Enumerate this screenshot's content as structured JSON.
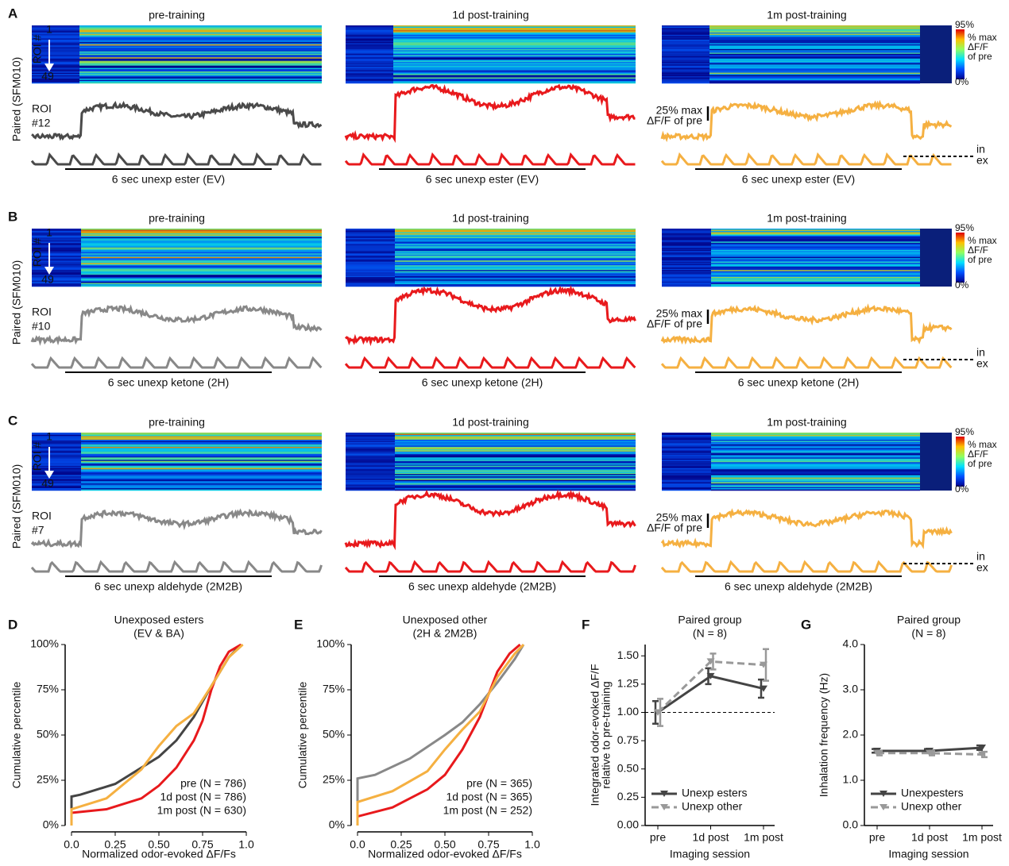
{
  "figure": {
    "panels": [
      {
        "letter": "A",
        "ylabel": "Paired (SFM010)",
        "roi_axis": "ROI #",
        "roi_first": "1",
        "roi_last": "49",
        "roi_label": [
          "ROI",
          "#12"
        ],
        "titles": [
          "pre-training",
          "1d post-training",
          "1m post-training"
        ],
        "odor": "6 sec unexp ester (EV)",
        "colorbar": [
          "95%",
          "% max",
          "ΔF/F",
          "of pre",
          "0%"
        ],
        "scale": [
          "25% max",
          "ΔF/F of pre"
        ],
        "breath": [
          "in",
          "ex"
        ]
      },
      {
        "letter": "B",
        "ylabel": "Paired (SFM010)",
        "roi_axis": "ROI #",
        "roi_first": "1",
        "roi_last": "49",
        "roi_label": [
          "ROI",
          "#10"
        ],
        "titles": [
          "pre-training",
          "1d post-training",
          "1m post-training"
        ],
        "odor": "6 sec unexp ketone (2H)",
        "colorbar": [
          "95%",
          "% max",
          "ΔF/F",
          "of pre",
          "0%"
        ],
        "scale": [
          "25% max",
          "ΔF/F of pre"
        ],
        "breath": [
          "in",
          "ex"
        ]
      },
      {
        "letter": "C",
        "ylabel": "Paired (SFM010)",
        "roi_axis": "ROI #",
        "roi_first": "1",
        "roi_last": "49",
        "roi_label": [
          "ROI",
          "#7"
        ],
        "titles": [
          "pre-training",
          "1d post-training",
          "1m post-training"
        ],
        "odor": "6 sec unexp aldehyde (2M2B)",
        "colorbar": [
          "95%",
          "% max",
          "ΔF/F",
          "of pre",
          "0%"
        ],
        "scale": [
          "25% max",
          "ΔF/F of pre"
        ],
        "breath": [
          "in",
          "ex"
        ]
      }
    ]
  },
  "chart_data": [
    {
      "type": "line",
      "letter": "D",
      "title": [
        "Unexposed esters",
        "(EV & BA)"
      ],
      "title_color": "#666666",
      "ylabel": [
        "Cumulative percentile"
      ],
      "xlabel": "Normalized odor-evoked ΔF/Fs",
      "xlim": [
        0,
        1
      ],
      "ylim": [
        0,
        100
      ],
      "xticks": [
        {
          "value": 0,
          "label": "0.0"
        },
        0.25,
        {
          "value": 0.5,
          "label": "0.50"
        },
        0.75,
        {
          "value": 1,
          "label": "1.0"
        }
      ],
      "yticks": [
        {
          "value": 0,
          "label": "0%"
        },
        {
          "value": 25,
          "label": "25%"
        },
        {
          "value": 50,
          "label": "50%"
        },
        {
          "value": 75,
          "label": "75%"
        },
        {
          "value": 100,
          "label": "100%"
        }
      ],
      "legend": "lower right",
      "series": [
        {
          "name": "pre (N = 786)",
          "color": "#444444",
          "x": [
            0,
            0,
            0.05,
            0.25,
            0.5,
            0.6,
            0.7,
            0.8,
            0.9,
            0.97
          ],
          "values": [
            0,
            16,
            17,
            23,
            38,
            47,
            60,
            77,
            93,
            100
          ]
        },
        {
          "name": "1d post (N = 786)",
          "color": "#e8191c",
          "x": [
            0,
            0,
            0.2,
            0.4,
            0.5,
            0.6,
            0.7,
            0.75,
            0.8,
            0.85,
            0.9,
            0.97
          ],
          "values": [
            0,
            7,
            9,
            15,
            22,
            32,
            47,
            58,
            75,
            88,
            96,
            100
          ]
        },
        {
          "name": "1m post (N = 630)",
          "color": "#f5b041",
          "x": [
            0,
            0,
            0.2,
            0.4,
            0.5,
            0.6,
            0.7,
            0.8,
            0.9,
            0.98
          ],
          "values": [
            0,
            9,
            15,
            31,
            44,
            55,
            62,
            77,
            93,
            100
          ]
        }
      ]
    },
    {
      "type": "line",
      "letter": "E",
      "title": [
        "Unexposed other",
        "(2H & 2M2B)"
      ],
      "title_color": "#999999",
      "ylabel": [
        "Cumulative percentile"
      ],
      "xlabel": "Normalized odor-evoked ΔF/Fs",
      "xlim": [
        0,
        1
      ],
      "ylim": [
        0,
        100
      ],
      "xticks": [
        {
          "value": 0,
          "label": "0.0"
        },
        0.25,
        {
          "value": 0.5,
          "label": "0.50"
        },
        0.75,
        {
          "value": 1,
          "label": "1.0"
        }
      ],
      "yticks": [
        {
          "value": 0,
          "label": "0%"
        },
        {
          "value": 25,
          "label": "25%"
        },
        {
          "value": 50,
          "label": "50%"
        },
        {
          "value": 75,
          "label": "75%"
        },
        {
          "value": 100,
          "label": "100%"
        }
      ],
      "legend": "lower right",
      "series": [
        {
          "name": "pre (N = 365)",
          "color": "#888888",
          "x": [
            0,
            0,
            0.1,
            0.3,
            0.5,
            0.6,
            0.7,
            0.8,
            0.9,
            0.95
          ],
          "values": [
            0,
            26,
            28,
            37,
            50,
            57,
            67,
            79,
            92,
            100
          ]
        },
        {
          "name": "1d post (N = 365)",
          "color": "#e8191c",
          "x": [
            0,
            0,
            0.2,
            0.4,
            0.5,
            0.6,
            0.7,
            0.8,
            0.87,
            0.93
          ],
          "values": [
            0,
            5,
            10,
            20,
            28,
            42,
            60,
            85,
            95,
            100
          ]
        },
        {
          "name": "1m post (N = 252)",
          "color": "#f5b041",
          "x": [
            0,
            0,
            0.2,
            0.4,
            0.5,
            0.6,
            0.7,
            0.8,
            0.9,
            0.95
          ],
          "values": [
            0,
            13,
            19,
            30,
            42,
            53,
            63,
            82,
            95,
            100
          ]
        }
      ]
    },
    {
      "type": "line",
      "letter": "F",
      "title": [
        "Paired group",
        "(N = 8)"
      ],
      "title_color": "#e8191c",
      "ylabel": [
        "Integrated odor-evoked ΔF/F",
        "relative to pre-training"
      ],
      "xlabel": "Imaging session",
      "categories": [
        "pre",
        "1d post",
        "1m post"
      ],
      "ylim": [
        0,
        1.6
      ],
      "yticks": [
        {
          "value": 0,
          "label": "0.00"
        },
        0.25,
        {
          "value": 0.5,
          "label": "0.50"
        },
        0.75,
        {
          "value": 1,
          "label": "1.00"
        },
        1.25,
        {
          "value": 1.5,
          "label": "1.50"
        }
      ],
      "hline": 1,
      "legend": "lower left",
      "series": [
        {
          "name": "Unexp esters",
          "color": "#444444",
          "dashed": false,
          "values": [
            1.0,
            1.32,
            1.21
          ],
          "errors": [
            0.1,
            0.07,
            0.08
          ]
        },
        {
          "name": "Unexp other",
          "color": "#999999",
          "dashed": true,
          "values": [
            1.0,
            1.45,
            1.42
          ],
          "errors": [
            0.12,
            0.07,
            0.14
          ]
        }
      ]
    },
    {
      "type": "line",
      "letter": "G",
      "title": [
        "Paired group",
        "(N = 8)"
      ],
      "title_color": "#e8191c",
      "ylabel": [
        "Inhalation frequency (Hz)"
      ],
      "xlabel": "Imaging session",
      "categories": [
        "pre",
        "1d post",
        "1m post"
      ],
      "ylim": [
        0,
        4
      ],
      "yticks": [
        {
          "value": 0,
          "label": "0.0"
        },
        {
          "value": 1,
          "label": "1.0"
        },
        {
          "value": 2,
          "label": "2.0"
        },
        {
          "value": 3,
          "label": "3.0"
        },
        {
          "value": 4,
          "label": "4.0"
        }
      ],
      "legend": "lower left",
      "series": [
        {
          "name": "Unexpesters",
          "color": "#444444",
          "dashed": false,
          "values": [
            1.65,
            1.65,
            1.72
          ],
          "errors": [
            0.04,
            0.04,
            0.05
          ]
        },
        {
          "name": "Unexp other",
          "color": "#999999",
          "dashed": true,
          "values": [
            1.6,
            1.6,
            1.57
          ],
          "errors": [
            0.05,
            0.05,
            0.06
          ]
        }
      ]
    }
  ]
}
